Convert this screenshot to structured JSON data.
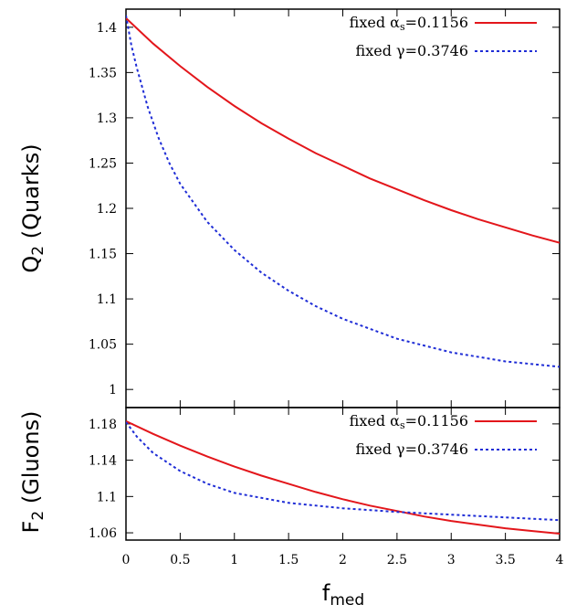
{
  "chart_data": [
    {
      "type": "line",
      "ylabel": "Q",
      "ylabel_sub": "2",
      "ylabel_rest": " (Quarks)",
      "xlim": [
        0,
        4
      ],
      "ylim": [
        0.98,
        1.42
      ],
      "yticks": [
        1,
        1.05,
        1.1,
        1.15,
        1.2,
        1.25,
        1.3,
        1.35,
        1.4
      ],
      "ytick_labels": [
        "1",
        "1.05",
        "1.1",
        "1.15",
        "1.2",
        "1.25",
        "1.3",
        "1.35",
        "1.4"
      ],
      "grid": false,
      "legend_position": "top-right",
      "series": [
        {
          "name_main": "fixed α",
          "name_sub": "s",
          "name_tail": "=0.1156",
          "color": "#e3161b",
          "style": "solid",
          "x": [
            0,
            0.25,
            0.5,
            0.75,
            1,
            1.25,
            1.5,
            1.75,
            2,
            2.25,
            2.5,
            2.75,
            3,
            3.25,
            3.5,
            3.75,
            4
          ],
          "y": [
            1.41,
            1.382,
            1.357,
            1.334,
            1.313,
            1.294,
            1.277,
            1.261,
            1.247,
            1.233,
            1.221,
            1.209,
            1.198,
            1.188,
            1.179,
            1.17,
            1.162
          ]
        },
        {
          "name_main": "fixed γ=0.3746",
          "name_sub": "",
          "name_tail": "",
          "color": "#1f2dd6",
          "style": "dotted",
          "x": [
            0,
            0.05,
            0.1,
            0.2,
            0.3,
            0.4,
            0.5,
            0.75,
            1,
            1.25,
            1.5,
            1.75,
            2,
            2.5,
            3,
            3.5,
            4
          ],
          "y": [
            1.413,
            1.38,
            1.355,
            1.312,
            1.278,
            1.25,
            1.227,
            1.185,
            1.154,
            1.129,
            1.109,
            1.092,
            1.078,
            1.056,
            1.041,
            1.031,
            1.025
          ]
        }
      ]
    },
    {
      "type": "line",
      "ylabel": "F",
      "ylabel_sub": "2",
      "ylabel_rest": " (Gluons)",
      "xlabel": "f",
      "xlabel_sub": "med",
      "xlim": [
        0,
        4
      ],
      "ylim": [
        1.052,
        1.198
      ],
      "yticks": [
        1.06,
        1.1,
        1.14,
        1.18
      ],
      "ytick_labels": [
        "1.06",
        "1.1",
        "1.14",
        "1.18"
      ],
      "xticks": [
        0,
        0.5,
        1,
        1.5,
        2,
        2.5,
        3,
        3.5,
        4
      ],
      "xtick_labels": [
        "0",
        "0.5",
        "1",
        "1.5",
        "2",
        "2.5",
        "3",
        "3.5",
        "4"
      ],
      "grid": false,
      "legend_position": "top-right",
      "series": [
        {
          "name_main": "fixed α",
          "name_sub": "s",
          "name_tail": "=0.1156",
          "color": "#e3161b",
          "style": "solid",
          "x": [
            0,
            0.25,
            0.5,
            0.75,
            1,
            1.25,
            1.5,
            1.75,
            2,
            2.25,
            2.5,
            2.75,
            3,
            3.25,
            3.5,
            3.75,
            4
          ],
          "y": [
            1.183,
            1.169,
            1.156,
            1.144,
            1.133,
            1.123,
            1.114,
            1.105,
            1.097,
            1.09,
            1.084,
            1.078,
            1.073,
            1.069,
            1.065,
            1.062,
            1.059
          ]
        },
        {
          "name_main": "fixed γ=0.3746",
          "name_sub": "",
          "name_tail": "",
          "color": "#1f2dd6",
          "style": "dotted",
          "x": [
            0,
            0.1,
            0.25,
            0.5,
            0.75,
            1,
            1.5,
            2,
            2.5,
            3,
            3.5,
            4
          ],
          "y": [
            1.182,
            1.166,
            1.148,
            1.128,
            1.114,
            1.104,
            1.093,
            1.087,
            1.083,
            1.08,
            1.077,
            1.074
          ]
        }
      ]
    }
  ]
}
